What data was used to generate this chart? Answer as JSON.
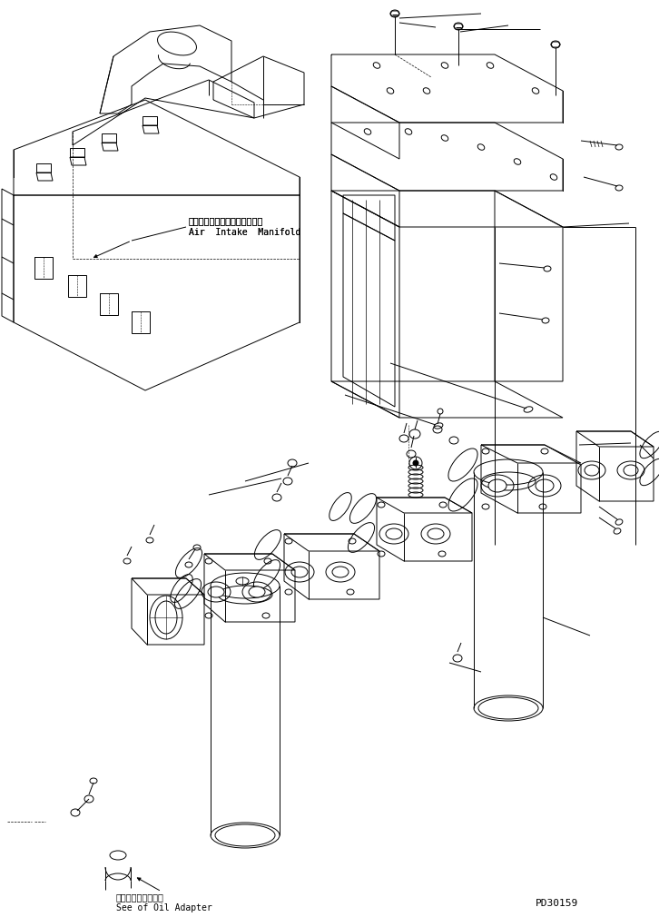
{
  "background_color": "#ffffff",
  "lc": "#000000",
  "lw": 0.7,
  "fig_width": 7.26,
  "fig_height": 10.1,
  "dpi": 100,
  "label_air_intake_jp": "エアーインテークマニホールド",
  "label_air_intake_en": "Air  Intake  Manifold",
  "label_oil_adapter_jp": "オイルアダプタ参照",
  "label_oil_adapter_en": "See of Oil Adapter",
  "label_part_number": "PD30159",
  "font_size": 7.0,
  "font_size_pn": 8.0
}
